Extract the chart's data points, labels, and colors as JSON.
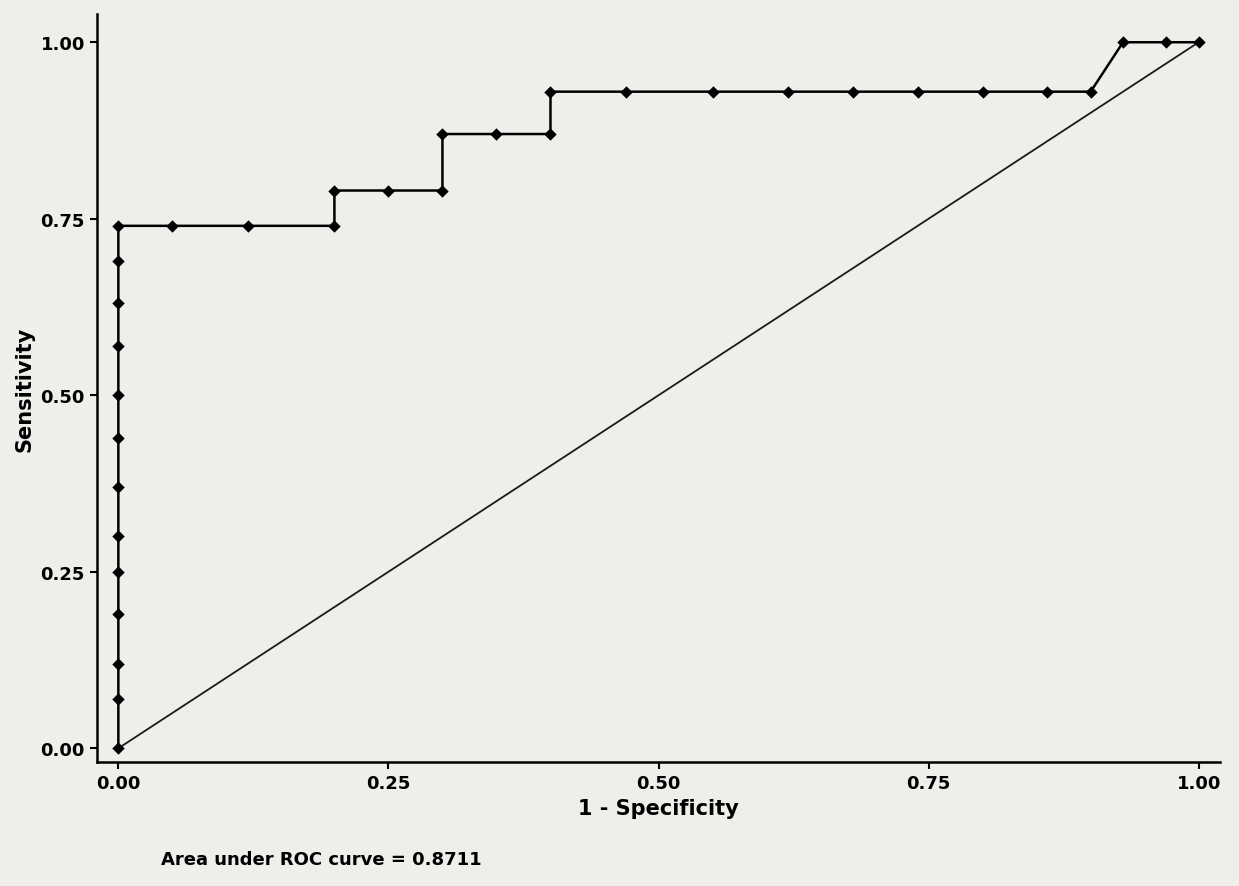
{
  "title": "",
  "xlabel": "1 - Specificity",
  "ylabel": "Sensitivity",
  "auc_text": "Area under ROC curve = 0.8711",
  "xlim": [
    -0.02,
    1.02
  ],
  "ylim": [
    -0.02,
    1.04
  ],
  "xticks": [
    0.0,
    0.25,
    0.5,
    0.75,
    1.0
  ],
  "yticks": [
    0.0,
    0.25,
    0.5,
    0.75,
    1.0
  ],
  "line_color": "#000000",
  "marker_color": "#000000",
  "ref_line_color": "#1a1a1a",
  "background_color": "#f0eeeb",
  "roc_points": [
    [
      0.0,
      0.0
    ],
    [
      0.0,
      0.07
    ],
    [
      0.0,
      0.12
    ],
    [
      0.0,
      0.19
    ],
    [
      0.0,
      0.25
    ],
    [
      0.0,
      0.3
    ],
    [
      0.0,
      0.37
    ],
    [
      0.0,
      0.44
    ],
    [
      0.0,
      0.5
    ],
    [
      0.0,
      0.57
    ],
    [
      0.0,
      0.63
    ],
    [
      0.0,
      0.69
    ],
    [
      0.0,
      0.74
    ],
    [
      0.05,
      0.74
    ],
    [
      0.12,
      0.74
    ],
    [
      0.2,
      0.74
    ],
    [
      0.2,
      0.79
    ],
    [
      0.25,
      0.79
    ],
    [
      0.3,
      0.79
    ],
    [
      0.3,
      0.87
    ],
    [
      0.35,
      0.87
    ],
    [
      0.4,
      0.87
    ],
    [
      0.4,
      0.93
    ],
    [
      0.47,
      0.93
    ],
    [
      0.55,
      0.93
    ],
    [
      0.62,
      0.93
    ],
    [
      0.68,
      0.93
    ],
    [
      0.74,
      0.93
    ],
    [
      0.8,
      0.93
    ],
    [
      0.86,
      0.93
    ],
    [
      0.9,
      0.93
    ],
    [
      0.93,
      1.0
    ],
    [
      0.97,
      1.0
    ],
    [
      1.0,
      1.0
    ]
  ],
  "marker_points": [
    [
      0.0,
      0.0
    ],
    [
      0.0,
      0.07
    ],
    [
      0.0,
      0.12
    ],
    [
      0.0,
      0.19
    ],
    [
      0.0,
      0.25
    ],
    [
      0.0,
      0.3
    ],
    [
      0.0,
      0.37
    ],
    [
      0.0,
      0.44
    ],
    [
      0.0,
      0.5
    ],
    [
      0.0,
      0.57
    ],
    [
      0.0,
      0.63
    ],
    [
      0.0,
      0.69
    ],
    [
      0.0,
      0.74
    ],
    [
      0.05,
      0.74
    ],
    [
      0.12,
      0.74
    ],
    [
      0.2,
      0.74
    ],
    [
      0.2,
      0.79
    ],
    [
      0.25,
      0.79
    ],
    [
      0.3,
      0.79
    ],
    [
      0.3,
      0.87
    ],
    [
      0.35,
      0.87
    ],
    [
      0.4,
      0.87
    ],
    [
      0.4,
      0.93
    ],
    [
      0.47,
      0.93
    ],
    [
      0.55,
      0.93
    ],
    [
      0.62,
      0.93
    ],
    [
      0.68,
      0.93
    ],
    [
      0.74,
      0.93
    ],
    [
      0.8,
      0.93
    ],
    [
      0.86,
      0.93
    ],
    [
      0.9,
      0.93
    ],
    [
      0.93,
      1.0
    ],
    [
      0.97,
      1.0
    ],
    [
      1.0,
      1.0
    ]
  ]
}
